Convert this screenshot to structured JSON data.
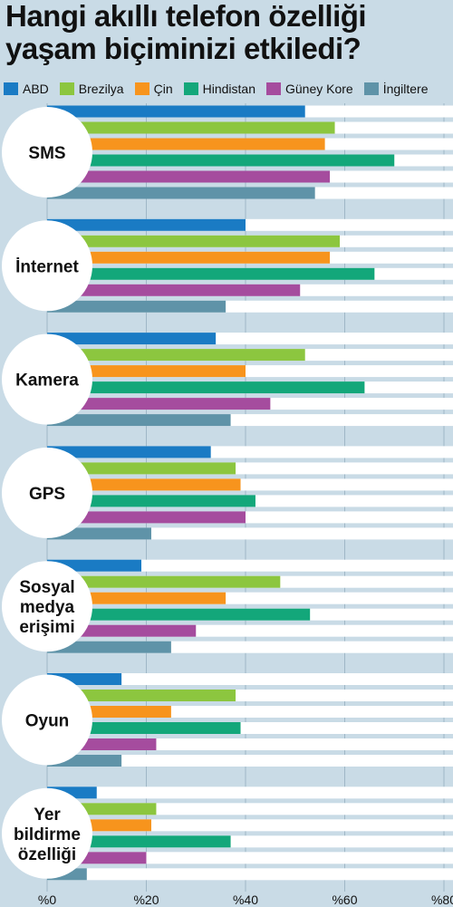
{
  "title_lines": [
    "Hangi akıllı telefon özelliği",
    "yaşam biçiminizi etkiledi?"
  ],
  "chart_data": {
    "type": "bar",
    "orientation": "horizontal",
    "categories": [
      [
        "SMS"
      ],
      [
        "İnternet"
      ],
      [
        "Kamera"
      ],
      [
        "GPS"
      ],
      [
        "Sosyal",
        "medya",
        "erişimi"
      ],
      [
        "Oyun"
      ],
      [
        "Yer",
        "bildirme",
        "özelliği"
      ]
    ],
    "series": [
      {
        "name": "ABD",
        "color": "#1a7bc4",
        "values": [
          52,
          40,
          34,
          33,
          19,
          15,
          10
        ]
      },
      {
        "name": "Brezilya",
        "color": "#8cc63f",
        "values": [
          58,
          59,
          52,
          38,
          47,
          38,
          22
        ]
      },
      {
        "name": "Çin",
        "color": "#f7941d",
        "values": [
          56,
          57,
          40,
          39,
          36,
          25,
          21
        ]
      },
      {
        "name": "Hindistan",
        "color": "#13a77a",
        "values": [
          70,
          66,
          64,
          42,
          53,
          39,
          37
        ]
      },
      {
        "name": "Güney Kore",
        "color": "#a54c9e",
        "values": [
          57,
          51,
          45,
          40,
          30,
          22,
          20
        ]
      },
      {
        "name": "İngiltere",
        "color": "#5f93a8",
        "values": [
          54,
          36,
          37,
          21,
          25,
          15,
          8
        ]
      }
    ],
    "xlim": [
      0,
      80
    ],
    "xticks": [
      0,
      20,
      40,
      60,
      80
    ],
    "xtick_labels": [
      "%0",
      "%20",
      "%40",
      "%60",
      "%80"
    ],
    "grid": true,
    "legend_position": "top"
  }
}
